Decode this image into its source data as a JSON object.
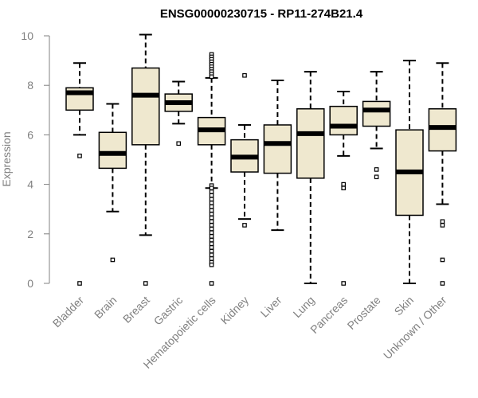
{
  "chart_data": {
    "type": "boxplot",
    "title": "ENSG00000230715 - RP11-274B21.4",
    "xlabel": "",
    "ylabel": "Expression",
    "ylim": [
      0,
      10
    ],
    "yticks": [
      "0",
      "2",
      "4",
      "6",
      "8",
      "10"
    ],
    "colors": {
      "box_fill": "#efe8cf",
      "stroke": "#000000",
      "axis": "#808080"
    },
    "categories": [
      "Bladder",
      "Brain",
      "Breast",
      "Gastric",
      "Hematopoietic cells",
      "Kidney",
      "Liver",
      "Lung",
      "Pancreas",
      "Prostate",
      "Skin",
      "Unknown / Other"
    ],
    "boxes": [
      {
        "name": "Bladder",
        "whisker_low": 6.0,
        "q1": 7.0,
        "median": 7.7,
        "q3": 7.9,
        "whisker_high": 8.9,
        "outliers": [
          5.15,
          0.0
        ]
      },
      {
        "name": "Brain",
        "whisker_low": 2.9,
        "q1": 4.65,
        "median": 5.25,
        "q3": 6.1,
        "whisker_high": 7.25,
        "outliers": [
          0.95
        ]
      },
      {
        "name": "Breast",
        "whisker_low": 1.95,
        "q1": 5.6,
        "median": 7.6,
        "q3": 8.7,
        "whisker_high": 10.05,
        "outliers": [
          0.0
        ]
      },
      {
        "name": "Gastric",
        "whisker_low": 6.45,
        "q1": 6.95,
        "median": 7.3,
        "q3": 7.65,
        "whisker_high": 8.15,
        "outliers": [
          5.65
        ]
      },
      {
        "name": "Hematopoietic cells",
        "whisker_low": 3.85,
        "q1": 5.6,
        "median": 6.2,
        "q3": 6.7,
        "whisker_high": 8.3,
        "outliers": [
          9.25,
          9.15,
          9.05,
          8.95,
          8.85,
          8.75,
          8.65,
          8.55,
          8.45,
          8.35,
          3.95,
          3.85,
          3.7,
          3.55,
          3.4,
          3.25,
          3.1,
          2.95,
          2.8,
          2.65,
          2.5,
          2.35,
          2.2,
          2.05,
          1.9,
          1.75,
          1.6,
          1.45,
          1.3,
          1.15,
          1.0,
          0.85,
          0.75,
          0.0
        ]
      },
      {
        "name": "Kidney",
        "whisker_low": 2.6,
        "q1": 4.5,
        "median": 5.1,
        "q3": 5.8,
        "whisker_high": 6.4,
        "outliers": [
          8.4,
          2.35
        ]
      },
      {
        "name": "Liver",
        "whisker_low": 2.15,
        "q1": 4.45,
        "median": 5.65,
        "q3": 6.4,
        "whisker_high": 8.2,
        "outliers": []
      },
      {
        "name": "Lung",
        "whisker_low": 0.0,
        "q1": 4.25,
        "median": 6.05,
        "q3": 7.05,
        "whisker_high": 8.55,
        "outliers": []
      },
      {
        "name": "Pancreas",
        "whisker_low": 5.15,
        "q1": 6.0,
        "median": 6.35,
        "q3": 7.15,
        "whisker_high": 7.75,
        "outliers": [
          4.0,
          3.85,
          0.0
        ]
      },
      {
        "name": "Prostate",
        "whisker_low": 5.45,
        "q1": 6.35,
        "median": 7.0,
        "q3": 7.35,
        "whisker_high": 8.55,
        "outliers": [
          4.6,
          4.3
        ]
      },
      {
        "name": "Skin",
        "whisker_low": 0.0,
        "q1": 2.75,
        "median": 4.5,
        "q3": 6.2,
        "whisker_high": 9.0,
        "outliers": []
      },
      {
        "name": "Unknown / Other",
        "whisker_low": 3.2,
        "q1": 5.35,
        "median": 6.3,
        "q3": 7.05,
        "whisker_high": 8.9,
        "outliers": [
          2.5,
          2.35,
          0.95,
          0.0
        ]
      }
    ]
  }
}
